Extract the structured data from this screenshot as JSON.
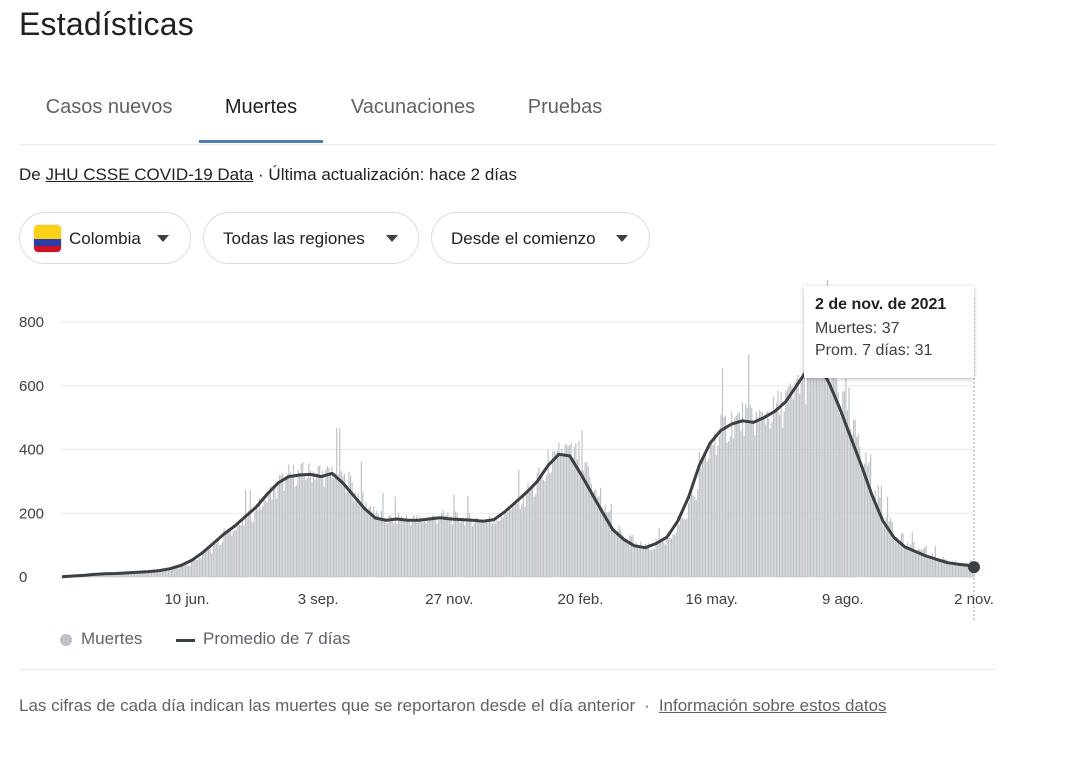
{
  "page": {
    "title": "Estadísticas"
  },
  "tabs": [
    {
      "label": "Casos nuevos",
      "active": false
    },
    {
      "label": "Muertes",
      "active": true
    },
    {
      "label": "Vacunaciones",
      "active": false
    },
    {
      "label": "Pruebas",
      "active": false
    }
  ],
  "source": {
    "prefix": "De",
    "link": "JHU CSSE COVID-19 Data",
    "updated": "· Última actualización: hace 2 días"
  },
  "filters": {
    "country": "Colombia",
    "region": "Todas las regiones",
    "period": "Desde el comienzo"
  },
  "tooltip": {
    "date": "2 de nov. de 2021",
    "deaths": "Muertes: 37",
    "avg": "Prom. 7 días: 31"
  },
  "legend": {
    "bars": "Muertes",
    "line": "Promedio de 7 días"
  },
  "footer": {
    "note": "Las cifras de cada día indican las muertes que se reportaron desde el día anterior",
    "separator": "·",
    "link": "Información sobre estos datos"
  },
  "colors": {
    "bars": "#bdc1c6",
    "line": "#3c4043",
    "tab_indicator": "#4a7fb0",
    "grid": "#e8eaed"
  },
  "chart_data": {
    "type": "bar",
    "title": "",
    "xlabel": "",
    "ylabel": "",
    "ylim": [
      0,
      800
    ],
    "yticks": [
      0,
      200,
      400,
      600,
      800
    ],
    "xtick_labels": [
      "10 jun.",
      "3 sep.",
      "27 nov.",
      "20 feb.",
      "16 may.",
      "9 ago.",
      "2 nov."
    ],
    "grid": true,
    "legend_position": "bottom-left",
    "x_range_dates": [
      "2020-03-21",
      "2021-11-02"
    ],
    "xtick_dates": [
      "2020-06-10",
      "2020-09-03",
      "2020-11-27",
      "2021-02-20",
      "2021-05-16",
      "2021-08-09",
      "2021-11-02"
    ],
    "series": [
      {
        "name": "Muertes",
        "type": "bar",
        "weekly_start_date": "2020-03-21",
        "weekly_values": [
          1,
          4,
          6,
          9,
          11,
          12,
          14,
          16,
          18,
          22,
          28,
          38,
          55,
          80,
          110,
          140,
          165,
          195,
          225,
          265,
          300,
          320,
          325,
          330,
          320,
          335,
          300,
          260,
          220,
          190,
          180,
          185,
          180,
          180,
          185,
          190,
          185,
          182,
          180,
          178,
          185,
          210,
          240,
          270,
          310,
          360,
          395,
          385,
          330,
          270,
          210,
          150,
          120,
          100,
          95,
          110,
          130,
          180,
          260,
          360,
          430,
          470,
          490,
          500,
          495,
          510,
          530,
          560,
          610,
          660,
          670,
          620,
          540,
          450,
          360,
          260,
          180,
          130,
          100,
          85,
          70,
          58,
          48,
          42,
          38,
          36,
          35,
          35,
          33,
          31,
          37
        ]
      },
      {
        "name": "Promedio de 7 días",
        "type": "line",
        "weekly_start_date": "2020-03-21",
        "weekly_values": [
          1,
          3,
          5,
          8,
          10,
          11,
          13,
          15,
          17,
          20,
          26,
          36,
          52,
          76,
          105,
          135,
          160,
          190,
          220,
          260,
          295,
          315,
          320,
          322,
          315,
          325,
          295,
          255,
          215,
          185,
          178,
          182,
          178,
          178,
          182,
          186,
          182,
          180,
          178,
          175,
          180,
          205,
          235,
          265,
          300,
          350,
          385,
          380,
          325,
          265,
          205,
          148,
          118,
          98,
          92,
          105,
          125,
          175,
          250,
          350,
          420,
          460,
          480,
          490,
          485,
          500,
          520,
          550,
          600,
          650,
          670,
          610,
          530,
          440,
          350,
          255,
          175,
          125,
          95,
          80,
          66,
          55,
          45,
          40,
          36,
          34,
          33,
          33,
          31,
          30,
          31
        ]
      }
    ],
    "highlight": {
      "date": "2021-11-02",
      "deaths": 37,
      "avg_7d": 31
    }
  }
}
